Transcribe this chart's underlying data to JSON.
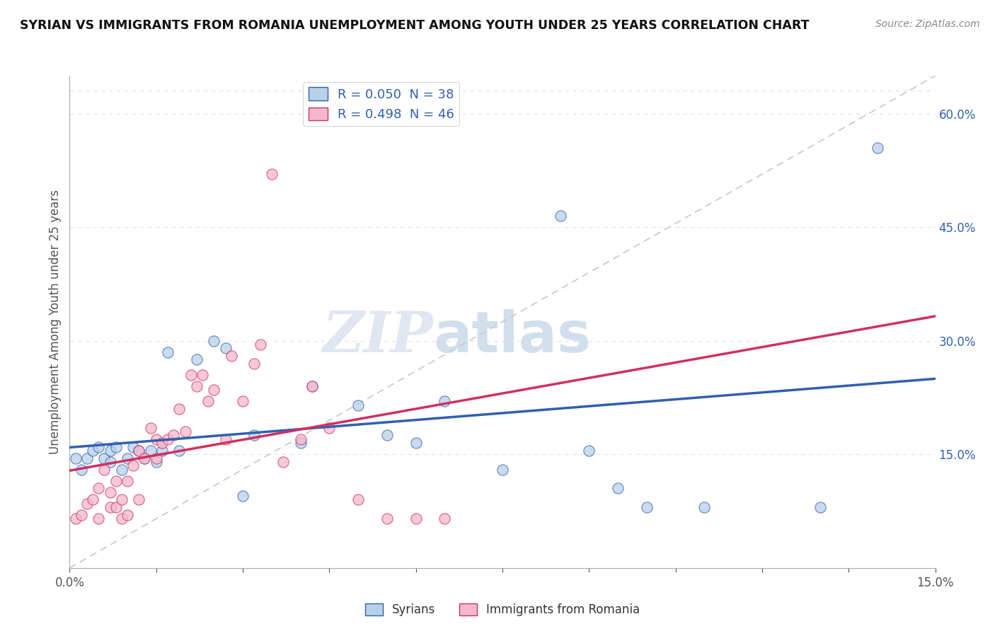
{
  "title": "SYRIAN VS IMMIGRANTS FROM ROMANIA UNEMPLOYMENT AMONG YOUTH UNDER 25 YEARS CORRELATION CHART",
  "source": "Source: ZipAtlas.com",
  "ylabel": "Unemployment Among Youth under 25 years",
  "legend_labels": [
    "Syrians",
    "Immigrants from Romania"
  ],
  "r_syrians": 0.05,
  "n_syrians": 38,
  "r_romania": 0.498,
  "n_romania": 46,
  "syrians_color": "#b8d0e8",
  "romania_color": "#f4b8cc",
  "syrians_line_color": "#3060b0",
  "romania_line_color": "#d03060",
  "diagonal_color": "#c8c8c8",
  "background_color": "#ffffff",
  "xlim": [
    0.0,
    0.15
  ],
  "ylim": [
    0.0,
    0.65
  ],
  "right_yticks": [
    0.15,
    0.3,
    0.45,
    0.6
  ],
  "right_yticklabels": [
    "15.0%",
    "30.0%",
    "45.0%",
    "60.0%"
  ],
  "syrians_x": [
    0.001,
    0.002,
    0.003,
    0.004,
    0.005,
    0.006,
    0.007,
    0.007,
    0.008,
    0.009,
    0.01,
    0.011,
    0.012,
    0.013,
    0.014,
    0.015,
    0.016,
    0.017,
    0.019,
    0.022,
    0.025,
    0.027,
    0.03,
    0.032,
    0.04,
    0.042,
    0.05,
    0.055,
    0.06,
    0.065,
    0.075,
    0.085,
    0.09,
    0.095,
    0.1,
    0.11,
    0.13,
    0.14
  ],
  "syrians_y": [
    0.145,
    0.13,
    0.145,
    0.155,
    0.16,
    0.145,
    0.14,
    0.155,
    0.16,
    0.13,
    0.145,
    0.16,
    0.155,
    0.145,
    0.155,
    0.14,
    0.155,
    0.285,
    0.155,
    0.275,
    0.3,
    0.29,
    0.095,
    0.175,
    0.165,
    0.24,
    0.215,
    0.175,
    0.165,
    0.22,
    0.13,
    0.465,
    0.155,
    0.105,
    0.08,
    0.08,
    0.08,
    0.555
  ],
  "romania_x": [
    0.001,
    0.002,
    0.003,
    0.004,
    0.005,
    0.005,
    0.006,
    0.007,
    0.007,
    0.008,
    0.008,
    0.009,
    0.009,
    0.01,
    0.01,
    0.011,
    0.012,
    0.012,
    0.013,
    0.014,
    0.015,
    0.015,
    0.016,
    0.017,
    0.018,
    0.019,
    0.02,
    0.021,
    0.022,
    0.023,
    0.024,
    0.025,
    0.027,
    0.028,
    0.03,
    0.032,
    0.033,
    0.035,
    0.037,
    0.04,
    0.042,
    0.045,
    0.05,
    0.055,
    0.06,
    0.065
  ],
  "romania_y": [
    0.065,
    0.07,
    0.085,
    0.09,
    0.105,
    0.065,
    0.13,
    0.08,
    0.1,
    0.08,
    0.115,
    0.065,
    0.09,
    0.07,
    0.115,
    0.135,
    0.09,
    0.155,
    0.145,
    0.185,
    0.145,
    0.17,
    0.165,
    0.17,
    0.175,
    0.21,
    0.18,
    0.255,
    0.24,
    0.255,
    0.22,
    0.235,
    0.17,
    0.28,
    0.22,
    0.27,
    0.295,
    0.52,
    0.14,
    0.17,
    0.24,
    0.185,
    0.09,
    0.065,
    0.065,
    0.065
  ],
  "watermark_zip": "ZIP",
  "watermark_atlas": "atlas",
  "grid_color": "#e0e0e0"
}
